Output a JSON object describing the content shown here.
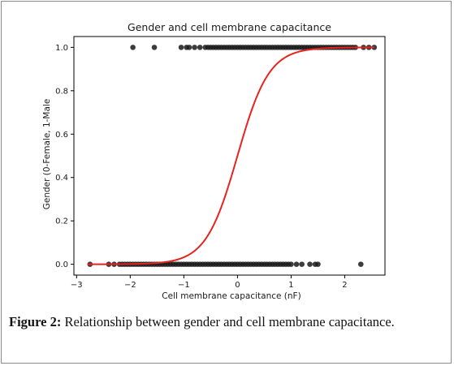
{
  "chart_data": {
    "type": "scatter",
    "title": "Gender and cell membrane capacitance",
    "xlabel": "Cell membrane capacitance (nF)",
    "ylabel": "Gender (0-Female, 1-Male",
    "xlim": [
      -3.05,
      2.75
    ],
    "ylim": [
      -0.05,
      1.05
    ],
    "xticks": [
      "−3",
      "−2",
      "−1",
      "0",
      "1",
      "2"
    ],
    "xtick_values": [
      -3,
      -2,
      -1,
      0,
      1,
      2
    ],
    "yticks": [
      "0.0",
      "0.2",
      "0.4",
      "0.6",
      "0.8",
      "1.0"
    ],
    "ytick_values": [
      0.0,
      0.2,
      0.4,
      0.6,
      0.8,
      1.0
    ],
    "grid": false,
    "colors": {
      "points": "#1a1a1a",
      "curve": "#e8231f",
      "axes": "#000000"
    },
    "series": [
      {
        "type": "scatter",
        "y": 1,
        "x": [
          -1.95,
          -1.55,
          -1.05,
          -0.95,
          -0.9,
          -0.8,
          -0.7,
          -0.6,
          -0.55,
          -0.5,
          -0.45,
          -0.4,
          -0.35,
          -0.3,
          -0.25,
          -0.2,
          -0.15,
          -0.1,
          -0.05,
          0.0,
          0.05,
          0.1,
          0.15,
          0.2,
          0.25,
          0.3,
          0.35,
          0.4,
          0.45,
          0.5,
          0.55,
          0.6,
          0.65,
          0.7,
          0.75,
          0.8,
          0.85,
          0.9,
          0.95,
          1.0,
          1.05,
          1.1,
          1.15,
          1.2,
          1.25,
          1.3,
          1.35,
          1.4,
          1.45,
          1.5,
          1.55,
          1.6,
          1.65,
          1.7,
          1.75,
          1.8,
          1.85,
          1.9,
          1.95,
          2.0,
          2.05,
          2.1,
          2.15,
          2.2,
          2.35,
          2.45,
          2.55
        ]
      },
      {
        "type": "scatter",
        "y": 0,
        "x": [
          -2.75,
          -2.4,
          -2.3,
          -2.2,
          -2.15,
          -2.1,
          -2.05,
          -2.0,
          -1.95,
          -1.9,
          -1.85,
          -1.8,
          -1.75,
          -1.7,
          -1.65,
          -1.6,
          -1.55,
          -1.5,
          -1.45,
          -1.4,
          -1.35,
          -1.3,
          -1.25,
          -1.2,
          -1.15,
          -1.1,
          -1.05,
          -1.0,
          -0.95,
          -0.9,
          -0.85,
          -0.8,
          -0.75,
          -0.7,
          -0.65,
          -0.6,
          -0.55,
          -0.5,
          -0.45,
          -0.4,
          -0.35,
          -0.3,
          -0.25,
          -0.2,
          -0.15,
          -0.1,
          -0.05,
          0.0,
          0.05,
          0.1,
          0.15,
          0.2,
          0.25,
          0.3,
          0.35,
          0.4,
          0.45,
          0.5,
          0.55,
          0.6,
          0.65,
          0.7,
          0.75,
          0.8,
          0.85,
          0.9,
          0.95,
          1.0,
          1.1,
          1.2,
          1.35,
          1.45,
          1.5,
          2.3
        ]
      },
      {
        "type": "line",
        "function": "logistic",
        "x_range": [
          -2.8,
          2.55
        ],
        "midpoint": 0.0,
        "slope": 3.4
      }
    ]
  },
  "caption": {
    "label": "Figure 2:",
    "text": "Relationship between gender and cell membrane capacitance."
  }
}
